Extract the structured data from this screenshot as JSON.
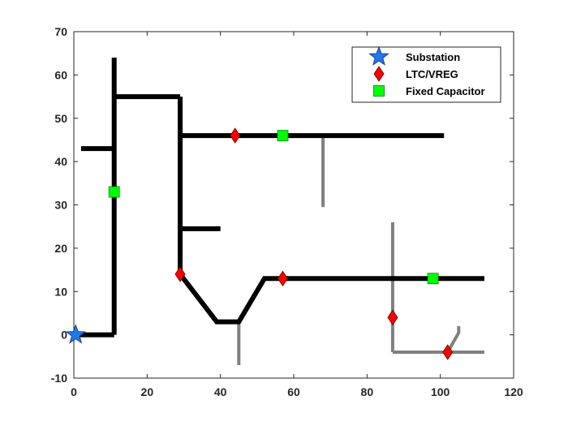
{
  "chart_data": {
    "type": "line",
    "title": "",
    "xlabel": "",
    "ylabel": "",
    "xlim": [
      0,
      120
    ],
    "ylim": [
      -10,
      70
    ],
    "x_ticks": [
      0,
      20,
      40,
      60,
      80,
      100,
      120
    ],
    "y_ticks": [
      -10,
      0,
      10,
      20,
      30,
      40,
      50,
      60,
      70
    ],
    "grid": false,
    "legend_position": "top-right",
    "line_colors": {
      "main": "#000000",
      "lateral": "#808080"
    },
    "main_lines": [
      {
        "x": [
          0,
          11
        ],
        "y": [
          0,
          0
        ]
      },
      {
        "x": [
          11,
          11
        ],
        "y": [
          0,
          64
        ]
      },
      {
        "x": [
          2,
          11
        ],
        "y": [
          43,
          43
        ]
      },
      {
        "x": [
          11,
          29
        ],
        "y": [
          55,
          55
        ]
      },
      {
        "x": [
          29,
          29
        ],
        "y": [
          55,
          14
        ]
      },
      {
        "x": [
          29,
          101
        ],
        "y": [
          46,
          46
        ]
      },
      {
        "x": [
          29,
          40
        ],
        "y": [
          24.5,
          24.5
        ]
      },
      {
        "x": [
          29,
          39,
          45,
          52,
          112
        ],
        "y": [
          14,
          3,
          3,
          13,
          13
        ]
      }
    ],
    "lateral_lines": [
      {
        "x": [
          68,
          68
        ],
        "y": [
          46,
          29.5
        ]
      },
      {
        "x": [
          45,
          45
        ],
        "y": [
          3,
          -7
        ]
      },
      {
        "x": [
          87,
          87
        ],
        "y": [
          26,
          -4
        ]
      },
      {
        "x": [
          87,
          112
        ],
        "y": [
          -4,
          -4
        ]
      },
      {
        "x": [
          102,
          105,
          105
        ],
        "y": [
          -4,
          0.5,
          2
        ]
      }
    ],
    "series": [
      {
        "name": "Substation",
        "marker": "star",
        "color": "#1f7ae8",
        "points": [
          [
            0.5,
            0
          ]
        ]
      },
      {
        "name": "LTC/VREG",
        "marker": "diamond",
        "color": "#ff0000",
        "points": [
          [
            44,
            46
          ],
          [
            29,
            14
          ],
          [
            57,
            13
          ],
          [
            87,
            4
          ],
          [
            102,
            -4
          ]
        ]
      },
      {
        "name": "Fixed Capacitor",
        "marker": "square",
        "color": "#00ff00",
        "points": [
          [
            11,
            33
          ],
          [
            57,
            46
          ],
          [
            98,
            13
          ]
        ]
      }
    ]
  }
}
